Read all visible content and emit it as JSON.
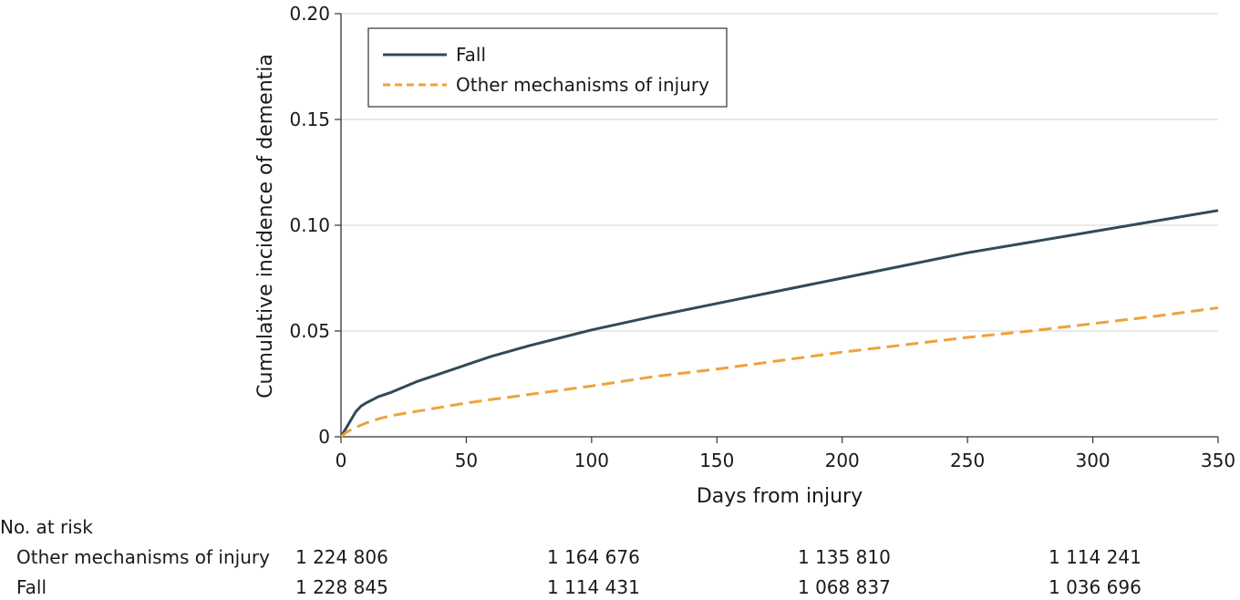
{
  "chart_data": {
    "type": "line",
    "xlabel": "Days from injury",
    "ylabel": "Cumulative incidence of dementia",
    "xlim": [
      0,
      350
    ],
    "ylim": [
      0,
      0.2
    ],
    "x_ticks": [
      0,
      50,
      100,
      150,
      200,
      250,
      300,
      350
    ],
    "x_tick_labels": [
      "0",
      "50",
      "100",
      "150",
      "200",
      "250",
      "300",
      "350"
    ],
    "y_ticks": [
      0,
      0.05,
      0.1,
      0.15,
      0.2
    ],
    "y_tick_labels": [
      "0",
      "0.05",
      "0.10",
      "0.15",
      "0.20"
    ],
    "grid": "horizontal",
    "legend_position": "top-left",
    "series": [
      {
        "name": "Fall",
        "color": "#2f4b5a",
        "style": "solid",
        "x": [
          0,
          1,
          2,
          3,
          4,
          5,
          6,
          8,
          10,
          15,
          20,
          30,
          40,
          50,
          60,
          75,
          100,
          125,
          150,
          175,
          200,
          225,
          250,
          275,
          300,
          325,
          350
        ],
        "y": [
          0,
          0.002,
          0.004,
          0.006,
          0.008,
          0.01,
          0.012,
          0.0145,
          0.016,
          0.019,
          0.021,
          0.026,
          0.03,
          0.034,
          0.038,
          0.043,
          0.0505,
          0.057,
          0.063,
          0.069,
          0.075,
          0.081,
          0.087,
          0.092,
          0.097,
          0.102,
          0.107
        ]
      },
      {
        "name": "Other mechanisms of injury",
        "color": "#f0a23a",
        "style": "dashed",
        "x": [
          0,
          2,
          5,
          10,
          15,
          20,
          30,
          50,
          75,
          100,
          125,
          150,
          175,
          200,
          225,
          250,
          275,
          300,
          325,
          350
        ],
        "y": [
          0,
          0.002,
          0.004,
          0.0065,
          0.0085,
          0.01,
          0.012,
          0.016,
          0.02,
          0.024,
          0.0285,
          0.032,
          0.036,
          0.04,
          0.0435,
          0.047,
          0.05,
          0.0535,
          0.057,
          0.061
        ]
      }
    ]
  },
  "risk_table": {
    "title": "No. at risk",
    "rows": [
      {
        "label": "Other mechanisms of injury",
        "values": [
          "1 224 806",
          "1 164 676",
          "1 135 810",
          "1 114 241"
        ]
      },
      {
        "label": "Fall",
        "values": [
          "1 228 845",
          "1 114 431",
          "1 068 837",
          "1 036 696"
        ]
      }
    ]
  }
}
